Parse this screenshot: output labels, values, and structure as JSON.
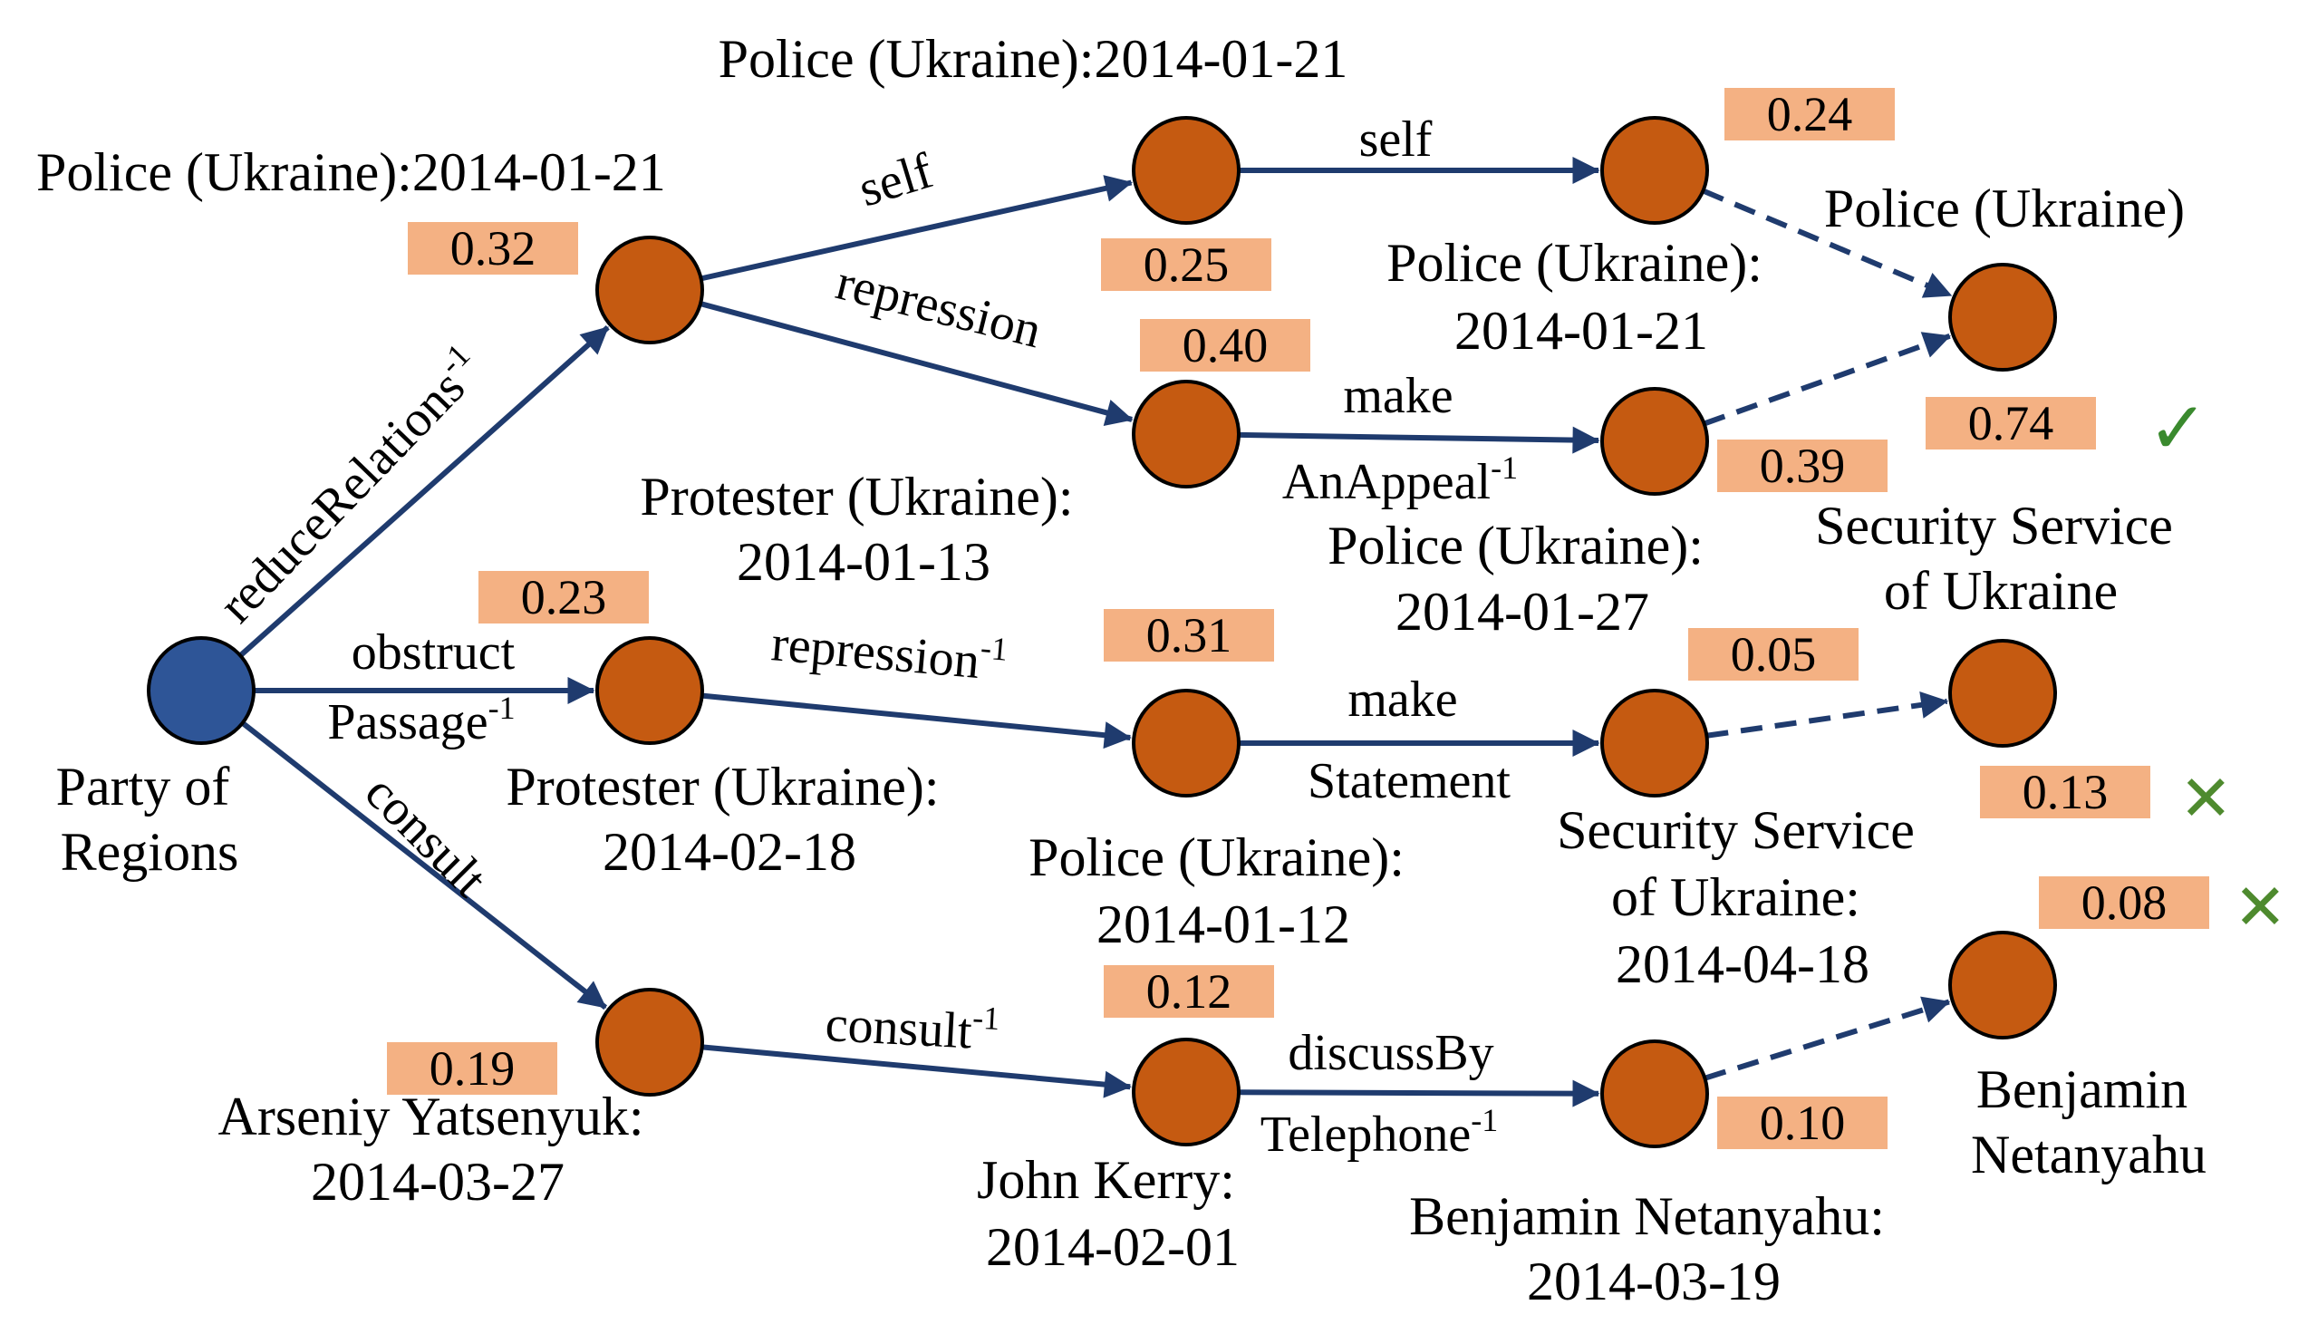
{
  "colors": {
    "edge": "#1f3b6e",
    "query_node": "#2e5597",
    "node": "#c55a11",
    "node_stroke": "#000000",
    "score_box": "#f4b183",
    "check": "#3a8a2e",
    "cross": "#4e8a2e"
  },
  "nodes": [
    {
      "id": "party",
      "type": "query",
      "label": [
        "Party of",
        "Regions"
      ]
    },
    {
      "id": "h1_police",
      "label": [
        "Police (Ukraine):2014-01-21"
      ],
      "score": "0.32"
    },
    {
      "id": "h1_protester",
      "label": [
        "Protester (Ukraine):",
        "2014-02-18"
      ],
      "score": "0.23"
    },
    {
      "id": "h1_arseniy",
      "label": [
        "Arseniy Yatsenyuk:",
        "2014-03-27"
      ],
      "score": "0.19"
    },
    {
      "id": "h2_police_a",
      "label": [
        "Police (Ukraine):2014-01-21"
      ],
      "score": "0.25"
    },
    {
      "id": "h2_protester",
      "label": [
        "Protester (Ukraine):",
        "2014-01-13"
      ],
      "score": "0.40"
    },
    {
      "id": "h2_police_b",
      "label": [
        "Police (Ukraine):",
        "2014-01-12"
      ],
      "score": "0.31"
    },
    {
      "id": "h2_kerry",
      "label": [
        "John Kerry:",
        "2014-02-01"
      ],
      "score": "0.12"
    },
    {
      "id": "h3_police_a",
      "label": [
        "Police (Ukraine):",
        "2014-01-21"
      ],
      "score": "0.24"
    },
    {
      "id": "h3_police_b",
      "label": [
        "Police (Ukraine):",
        "2014-01-27"
      ],
      "score": "0.39"
    },
    {
      "id": "h3_ssu",
      "label": [
        "Security Service",
        "of Ukraine:",
        "2014-04-18"
      ],
      "score": "0.05"
    },
    {
      "id": "h3_netanyahu",
      "label": [
        "Benjamin Netanyahu:",
        "2014-03-19"
      ],
      "score": "0.10"
    },
    {
      "id": "ans_police",
      "label": [
        "Police (Ukraine)"
      ],
      "score": "0.74",
      "mark": "✓"
    },
    {
      "id": "ans_ssu",
      "label": [
        "Security Service",
        "of Ukraine"
      ],
      "score": "0.13",
      "mark": "✕"
    },
    {
      "id": "ans_netanyahu",
      "label": [
        "Benjamin",
        "Netanyahu"
      ],
      "score": "0.08",
      "mark": "✕"
    }
  ],
  "edges": [
    {
      "from": "party",
      "to": "h1_police",
      "label": "reduceRelations",
      "sup": "-1"
    },
    {
      "from": "party",
      "to": "h1_protester",
      "label": [
        "obstruct",
        "Passage"
      ],
      "sup": "-1"
    },
    {
      "from": "party",
      "to": "h1_arseniy",
      "label": "consult"
    },
    {
      "from": "h1_police",
      "to": "h2_police_a",
      "label": "self"
    },
    {
      "from": "h1_police",
      "to": "h2_protester",
      "label": "repression"
    },
    {
      "from": "h1_protester",
      "to": "h2_police_b",
      "label": "repression",
      "sup": "-1"
    },
    {
      "from": "h1_arseniy",
      "to": "h2_kerry",
      "label": "consult",
      "sup": "-1"
    },
    {
      "from": "h2_police_a",
      "to": "h3_police_a",
      "label": "self"
    },
    {
      "from": "h2_protester",
      "to": "h3_police_b",
      "label": [
        "make",
        "AnAppeal"
      ],
      "sup": "-1"
    },
    {
      "from": "h2_police_b",
      "to": "h3_ssu",
      "label": [
        "make",
        "Statement"
      ]
    },
    {
      "from": "h2_kerry",
      "to": "h3_netanyahu",
      "label": [
        "discussBy",
        "Telephone"
      ],
      "sup": "-1"
    },
    {
      "from": "h3_police_a",
      "to": "ans_police",
      "dashed": true
    },
    {
      "from": "h3_police_b",
      "to": "ans_police",
      "dashed": true
    },
    {
      "from": "h3_ssu",
      "to": "ans_ssu",
      "dashed": true
    },
    {
      "from": "h3_netanyahu",
      "to": "ans_netanyahu",
      "dashed": true
    }
  ]
}
